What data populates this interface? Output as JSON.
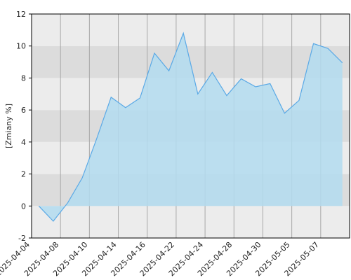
{
  "chart_data": {
    "type": "area",
    "y_label": "[Zmiany %]",
    "categories": [
      "2025-04-04",
      null,
      "2025-04-08",
      null,
      "2025-04-10",
      null,
      "2025-04-14",
      null,
      "2025-04-16",
      null,
      "2025-04-22",
      null,
      "2025-04-24",
      null,
      "2025-04-28",
      null,
      "2025-04-30",
      null,
      "2025-05-05",
      null,
      "2025-05-07",
      null
    ],
    "values": [
      0,
      -0.95,
      0.2,
      1.75,
      4.2,
      6.8,
      6.15,
      6.75,
      9.55,
      8.45,
      10.8,
      7.0,
      8.35,
      6.9,
      7.95,
      7.45,
      7.65,
      5.8,
      6.6,
      10.15,
      9.85,
      8.95
    ],
    "color": "#5aa9e6",
    "fill": "#b3dcf0",
    "ylim": [
      -2,
      12
    ],
    "yticks": [
      -2,
      0,
      2,
      4,
      6,
      8,
      10,
      12
    ],
    "band_colors": [
      "#ececec",
      "#dcdcdc"
    ],
    "grid": true
  }
}
